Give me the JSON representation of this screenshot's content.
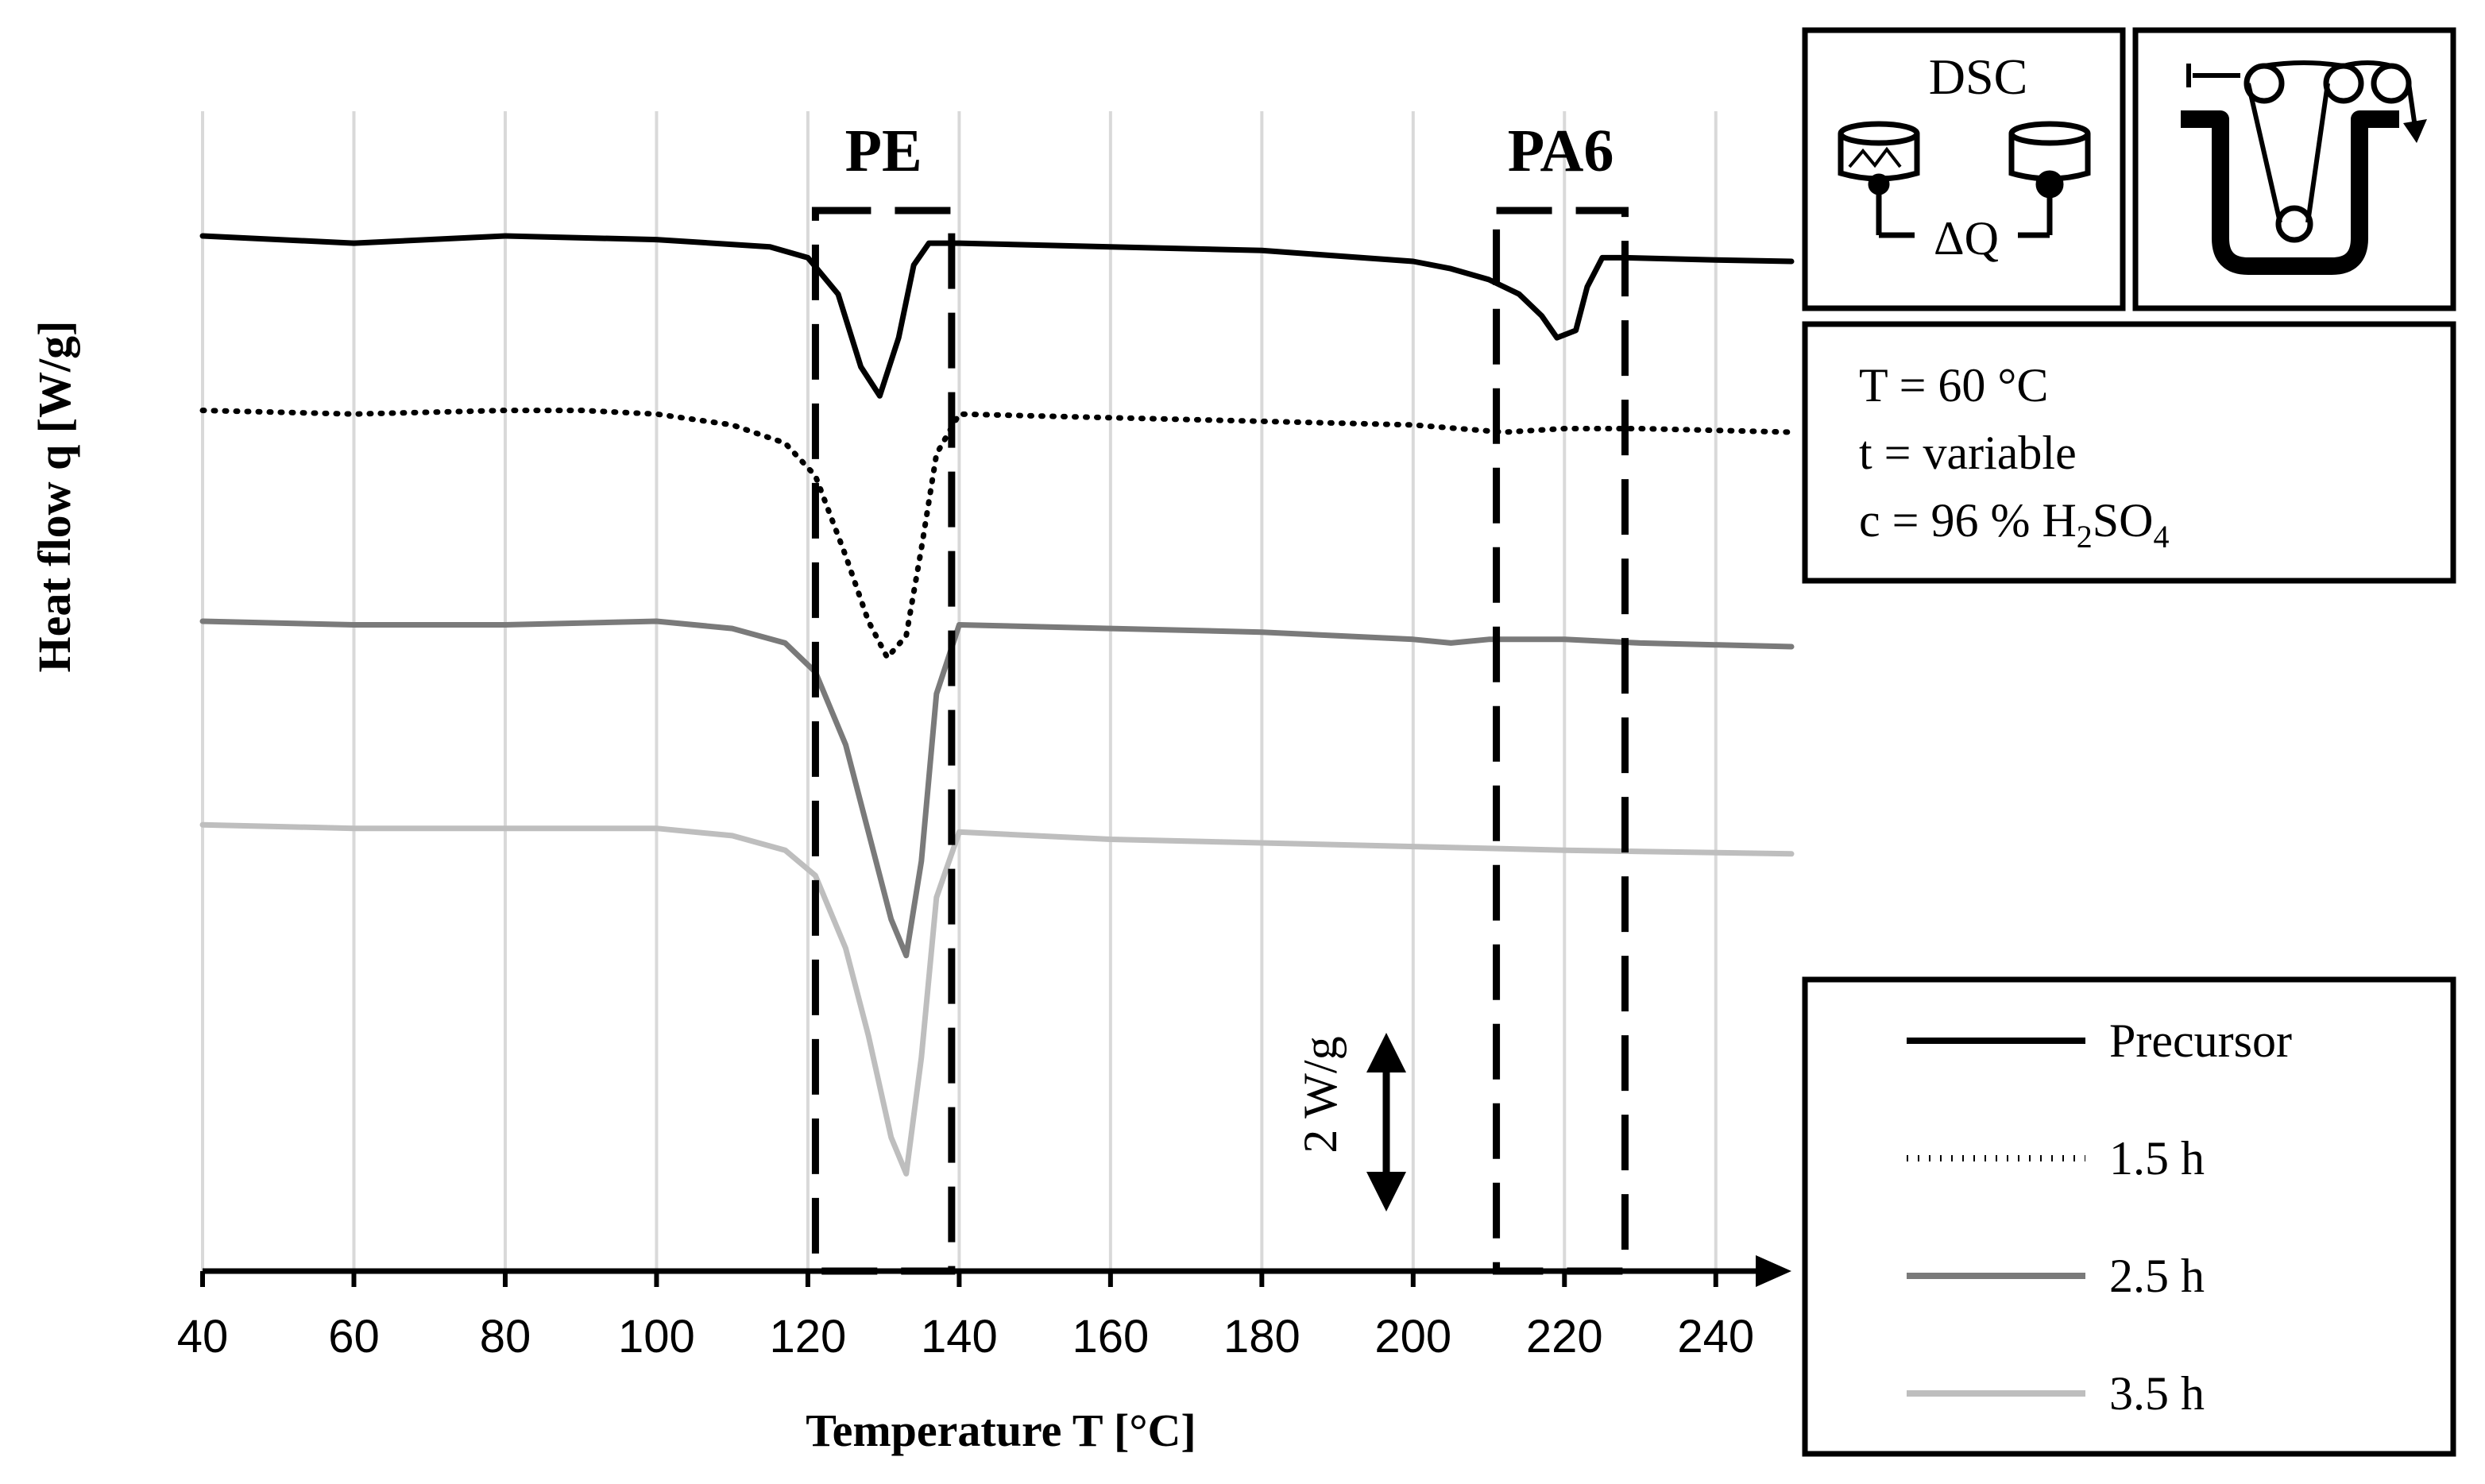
{
  "chart_data": {
    "type": "line",
    "xlabel": "Temperature T [°C]",
    "ylabel": "Heat flow q [W/g]",
    "xlim": [
      40,
      250
    ],
    "xticks": [
      40,
      60,
      80,
      100,
      120,
      140,
      160,
      180,
      200,
      220,
      240
    ],
    "grid": "vertical",
    "legend_position": "bottom-right",
    "scale_bar_label": "2 W/g",
    "regions": [
      {
        "label": "PE",
        "x_range": [
          121,
          139
        ]
      },
      {
        "label": "PA6",
        "x_range": [
          211,
          228
        ]
      }
    ],
    "series": [
      {
        "name": "Precursor",
        "color": "#000000",
        "style": "solid",
        "x": [
          40,
          60,
          80,
          100,
          115,
          120,
          124,
          127,
          129.5,
          132,
          134,
          136,
          140,
          160,
          180,
          200,
          205,
          210,
          214,
          217,
          219,
          221.5,
          223,
          225,
          228,
          240,
          250
        ],
        "y": [
          0.0,
          -0.1,
          0.0,
          -0.05,
          -0.15,
          -0.3,
          -0.8,
          -1.8,
          -2.2,
          -1.4,
          -0.4,
          -0.1,
          -0.1,
          -0.15,
          -0.2,
          -0.35,
          -0.45,
          -0.6,
          -0.8,
          -1.1,
          -1.4,
          -1.3,
          -0.7,
          -0.3,
          -0.3,
          -0.33,
          -0.35
        ]
      },
      {
        "name": "1.5 h",
        "color": "#000000",
        "style": "dotted",
        "x": [
          40,
          60,
          80,
          90,
          100,
          110,
          117,
          121,
          125,
          128,
          130.5,
          133,
          135,
          137,
          140,
          160,
          180,
          200,
          212,
          220,
          230,
          250
        ],
        "y": [
          -2.4,
          -2.45,
          -2.4,
          -2.4,
          -2.45,
          -2.6,
          -2.85,
          -3.3,
          -4.4,
          -5.3,
          -5.8,
          -5.5,
          -4.3,
          -3.0,
          -2.45,
          -2.5,
          -2.55,
          -2.6,
          -2.7,
          -2.65,
          -2.65,
          -2.7
        ]
      },
      {
        "name": "2.5 h",
        "color": "#7a7a7a",
        "style": "solid",
        "x": [
          40,
          60,
          80,
          100,
          110,
          117,
          121,
          125,
          128,
          131,
          133,
          135,
          137,
          140,
          160,
          180,
          190,
          200,
          205,
          210,
          220,
          230,
          250
        ],
        "y": [
          -5.3,
          -5.35,
          -5.35,
          -5.3,
          -5.4,
          -5.6,
          -6.0,
          -7.0,
          -8.2,
          -9.4,
          -9.9,
          -8.6,
          -6.3,
          -5.35,
          -5.4,
          -5.45,
          -5.5,
          -5.55,
          -5.6,
          -5.55,
          -5.55,
          -5.6,
          -5.65
        ]
      },
      {
        "name": "3.5 h",
        "color": "#bebebe",
        "style": "solid",
        "x": [
          40,
          60,
          80,
          100,
          110,
          117,
          121,
          125,
          128,
          131,
          133,
          135,
          137,
          140,
          160,
          180,
          200,
          220,
          250
        ],
        "y": [
          -8.1,
          -8.15,
          -8.15,
          -8.15,
          -8.25,
          -8.45,
          -8.8,
          -9.8,
          -11.0,
          -12.4,
          -12.9,
          -11.3,
          -9.1,
          -8.2,
          -8.3,
          -8.35,
          -8.4,
          -8.45,
          -8.5
        ]
      }
    ]
  },
  "info_box": {
    "icon1_label": "DSC",
    "icon1_sublabel": "ΔQ",
    "line1": "T = 60 °C",
    "line2": "t = variable",
    "line3_prefix": "c = 96 % H",
    "line3_sub1": "2",
    "line3_mid": "SO",
    "line3_sub2": "4"
  }
}
